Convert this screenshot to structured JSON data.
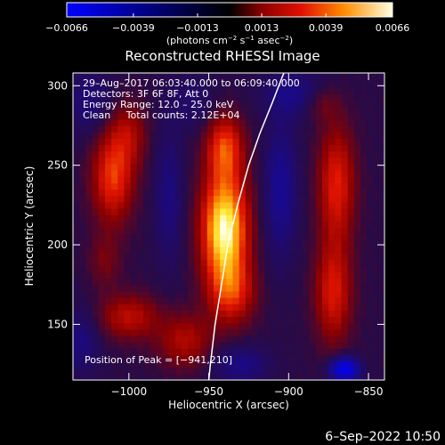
{
  "chart_data": {
    "type": "heatmap",
    "title": "Reconstructed RHESSI Image",
    "xlabel": "Heliocentric X (arcsec)",
    "ylabel": "Heliocentric Y (arcsec)",
    "xlim": [
      -1035,
      -840
    ],
    "ylim": [
      115,
      308
    ],
    "xticks": [
      -1000,
      -950,
      -900,
      -850
    ],
    "yticks": [
      150,
      200,
      250,
      300
    ],
    "xtick_labels": [
      "−1000",
      "−950",
      "−900",
      "−850"
    ],
    "ytick_labels": [
      "150",
      "200",
      "250",
      "300"
    ],
    "colorbar": {
      "min": -0.0066,
      "max": 0.0066,
      "ticks": [
        -0.0066,
        -0.0039,
        -0.0013,
        0.0013,
        0.0039,
        0.0066
      ],
      "tick_labels": [
        "−0.0066",
        "−0.0039",
        "−0.0013",
        "0.0013",
        "0.0039",
        "0.0066"
      ],
      "unit_label_parts": [
        "(photons cm",
        "−2",
        " s",
        "−1",
        " asec",
        "−2",
        ")"
      ]
    },
    "annotations": [
      "29–Aug–2017 06:03:40.000 to 06:09:40.000",
      "Detectors: 3F 6F 8F, Att 0",
      "Energy Range: 12.0 – 25.0 keV",
      "Clean     Total counts: 2.12E+04"
    ],
    "peak_label": "Position of Peak = [−941,210]",
    "peak": [
      -941,
      210
    ],
    "sources": [
      {
        "x": -940,
        "y": 210,
        "sx": 10,
        "sy": 25,
        "amp": 0.0066
      },
      {
        "x": -940,
        "y": 262,
        "sx": 8,
        "sy": 14,
        "amp": 0.0034
      },
      {
        "x": -935,
        "y": 170,
        "sx": 10,
        "sy": 14,
        "amp": 0.0026
      },
      {
        "x": -1010,
        "y": 243,
        "sx": 9,
        "sy": 20,
        "amp": 0.0036
      },
      {
        "x": -1000,
        "y": 270,
        "sx": 8,
        "sy": 14,
        "amp": 0.0018
      },
      {
        "x": -1015,
        "y": 190,
        "sx": 7,
        "sy": 12,
        "amp": 0.0012
      },
      {
        "x": -1000,
        "y": 155,
        "sx": 13,
        "sy": 10,
        "amp": 0.0024
      },
      {
        "x": -965,
        "y": 140,
        "sx": 12,
        "sy": 12,
        "amp": 0.0022
      },
      {
        "x": -870,
        "y": 238,
        "sx": 8,
        "sy": 26,
        "amp": 0.0032
      },
      {
        "x": -872,
        "y": 170,
        "sx": 8,
        "sy": 22,
        "amp": 0.003
      },
      {
        "x": -880,
        "y": 290,
        "sx": 8,
        "sy": 8,
        "amp": 0.0014
      },
      {
        "x": -975,
        "y": 230,
        "sx": 6,
        "sy": 30,
        "amp": -0.0016
      },
      {
        "x": -905,
        "y": 235,
        "sx": 7,
        "sy": 30,
        "amp": -0.0022
      },
      {
        "x": -895,
        "y": 295,
        "sx": 14,
        "sy": 10,
        "amp": -0.0018
      },
      {
        "x": -930,
        "y": 125,
        "sx": 12,
        "sy": 8,
        "amp": -0.0018
      },
      {
        "x": -1025,
        "y": 290,
        "sx": 10,
        "sy": 14,
        "amp": -0.0014
      },
      {
        "x": -1030,
        "y": 140,
        "sx": 8,
        "sy": 14,
        "amp": -0.0016
      },
      {
        "x": -865,
        "y": 122,
        "sx": 6,
        "sy": 5,
        "amp": -0.006
      },
      {
        "x": -960,
        "y": 290,
        "sx": 10,
        "sy": 12,
        "amp": -0.001
      }
    ],
    "limb_curve": [
      {
        "x": -903,
        "y": 308
      },
      {
        "x": -910,
        "y": 290
      },
      {
        "x": -918,
        "y": 270
      },
      {
        "x": -925,
        "y": 250
      },
      {
        "x": -932,
        "y": 225
      },
      {
        "x": -938,
        "y": 200
      },
      {
        "x": -942,
        "y": 175
      },
      {
        "x": -946,
        "y": 150
      },
      {
        "x": -949,
        "y": 125
      },
      {
        "x": -950,
        "y": 115
      }
    ],
    "grid": false,
    "legend": "none"
  },
  "footer": {
    "date": "6–Sep–2022 10:50"
  }
}
